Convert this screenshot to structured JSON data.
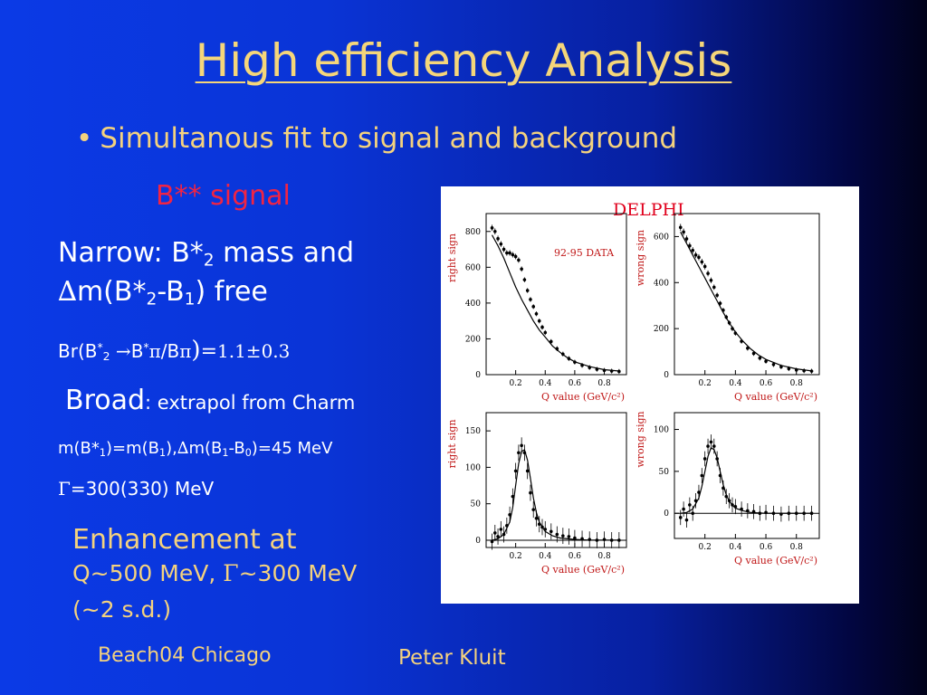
{
  "slide": {
    "title": "High efficiency Analysis",
    "bullet": "Simultanous fit to signal and background",
    "signal_heading": "B** signal",
    "narrow": {
      "line1_a": "Narrow: B*",
      "line1_sub": "2",
      "line1_b": " mass and",
      "line2_delta": "∆",
      "line2_a": "m(B*",
      "line2_sub1": "2",
      "line2_b": "-B",
      "line2_sub2": "1",
      "line2_c": ") free"
    },
    "br": {
      "a": "Br(B",
      "sup1": "*",
      "sub1": "2",
      "arrow": " →",
      "b": "B",
      "sup2": "*",
      "pi1": "π",
      "c": "/B",
      "pi2": "π",
      "paren": ")",
      "eq": "=",
      "value": "1.1±0.3"
    },
    "broad": {
      "label": "Broad",
      "text": ": extrapol from Charm",
      "mass_a": "m(B*",
      "mass_sub1": "1",
      "mass_b": ")=m(B",
      "mass_sub2": "1",
      "mass_c": "),",
      "mass_delta": "∆",
      "mass_d": "m(B",
      "mass_sub3": "1",
      "mass_e": "-B",
      "mass_sub4": "0",
      "mass_f": ")=45 MeV",
      "gamma_sym": "Γ",
      "gamma_text": "=300(330) MeV"
    },
    "enhancement": {
      "line1": "Enhancement at",
      "line2_a": "Q~500 MeV, ",
      "line2_gamma": "Γ",
      "line2_b": "~300 MeV",
      "line3": "(~2 s.d.)"
    },
    "footer": {
      "left": "Beach04 Chicago",
      "center": "Peter Kluit"
    },
    "colors": {
      "title": "#f5d67a",
      "accent_red": "#f02444",
      "text_white": "#ffffff",
      "background": "#0a34d6"
    }
  },
  "chart_data": [
    {
      "type": "scatter",
      "experiment_label": "DELPHI",
      "annotation": "92-95 DATA",
      "xlabel": "Q value (GeV/c²)",
      "ylabel": "right sign",
      "xticks": [
        0.2,
        0.4,
        0.6,
        0.8
      ],
      "yticks": [
        0,
        200,
        400,
        600,
        800
      ],
      "xlim": [
        0,
        0.95
      ],
      "ylim": [
        0,
        900
      ],
      "series": [
        {
          "x": [
            0.04,
            0.06,
            0.08,
            0.1,
            0.12,
            0.14,
            0.16,
            0.18,
            0.2,
            0.22,
            0.24,
            0.26,
            0.28,
            0.3,
            0.32,
            0.34,
            0.36,
            0.38,
            0.4,
            0.44,
            0.48,
            0.52,
            0.56,
            0.6,
            0.65,
            0.7,
            0.75,
            0.8,
            0.85,
            0.9
          ],
          "y": [
            820,
            800,
            760,
            730,
            700,
            680,
            680,
            670,
            660,
            640,
            590,
            530,
            470,
            420,
            380,
            340,
            300,
            265,
            235,
            185,
            145,
            115,
            90,
            70,
            52,
            40,
            30,
            24,
            20,
            18
          ]
        },
        {
          "x": [
            0.04,
            0.08,
            0.12,
            0.16,
            0.2,
            0.24,
            0.28,
            0.32,
            0.36,
            0.4,
            0.45,
            0.5,
            0.55,
            0.6,
            0.7,
            0.8,
            0.9
          ],
          "y": [
            780,
            720,
            650,
            570,
            490,
            420,
            360,
            300,
            250,
            210,
            160,
            125,
            95,
            72,
            45,
            28,
            20
          ]
        }
      ]
    },
    {
      "type": "scatter",
      "xlabel": "Q value (GeV/c²)",
      "ylabel": "wrong sign",
      "xticks": [
        0.2,
        0.4,
        0.6,
        0.8
      ],
      "yticks": [
        0,
        200,
        400,
        600
      ],
      "xlim": [
        0,
        0.95
      ],
      "ylim": [
        0,
        700
      ],
      "series": [
        {
          "x": [
            0.04,
            0.06,
            0.08,
            0.1,
            0.12,
            0.14,
            0.16,
            0.18,
            0.2,
            0.22,
            0.24,
            0.26,
            0.28,
            0.3,
            0.32,
            0.34,
            0.36,
            0.38,
            0.4,
            0.44,
            0.48,
            0.52,
            0.56,
            0.6,
            0.65,
            0.7,
            0.75,
            0.8,
            0.85,
            0.9
          ],
          "y": [
            640,
            620,
            590,
            560,
            540,
            520,
            510,
            490,
            470,
            440,
            410,
            380,
            345,
            310,
            280,
            250,
            225,
            200,
            180,
            145,
            115,
            92,
            72,
            58,
            44,
            34,
            26,
            20,
            17,
            15
          ]
        },
        {
          "x": [
            0.04,
            0.08,
            0.12,
            0.16,
            0.2,
            0.24,
            0.28,
            0.32,
            0.36,
            0.4,
            0.45,
            0.5,
            0.55,
            0.6,
            0.7,
            0.8,
            0.9
          ],
          "y": [
            620,
            570,
            520,
            470,
            420,
            370,
            320,
            270,
            225,
            185,
            145,
            112,
            86,
            66,
            40,
            25,
            16
          ]
        }
      ]
    },
    {
      "type": "scatter",
      "xlabel": "Q value (GeV/c²)",
      "ylabel": "right sign",
      "xticks": [
        0.2,
        0.4,
        0.6,
        0.8
      ],
      "yticks": [
        0,
        50,
        100,
        150
      ],
      "xlim": [
        0,
        0.95
      ],
      "ylim": [
        -10,
        175
      ],
      "series": [
        {
          "x": [
            0.04,
            0.06,
            0.08,
            0.1,
            0.12,
            0.14,
            0.16,
            0.18,
            0.2,
            0.22,
            0.24,
            0.26,
            0.28,
            0.3,
            0.32,
            0.34,
            0.36,
            0.38,
            0.4,
            0.44,
            0.48,
            0.52,
            0.56,
            0.6,
            0.65,
            0.7,
            0.75,
            0.8,
            0.85,
            0.9
          ],
          "y": [
            -2,
            10,
            5,
            15,
            8,
            20,
            35,
            60,
            95,
            120,
            130,
            120,
            95,
            65,
            42,
            30,
            22,
            18,
            15,
            12,
            8,
            6,
            5,
            3,
            2,
            1,
            0,
            1,
            0,
            0
          ]
        },
        {
          "x": [
            0.04,
            0.08,
            0.12,
            0.16,
            0.18,
            0.2,
            0.22,
            0.24,
            0.26,
            0.28,
            0.3,
            0.32,
            0.34,
            0.36,
            0.4,
            0.45,
            0.5,
            0.6,
            0.7,
            0.9
          ],
          "y": [
            0,
            2,
            8,
            25,
            45,
            75,
            105,
            122,
            124,
            110,
            85,
            58,
            38,
            25,
            12,
            6,
            3,
            1,
            0,
            0
          ]
        }
      ]
    },
    {
      "type": "scatter",
      "xlabel": "Q value (GeV/c²)",
      "ylabel": "wrong sign",
      "xticks": [
        0.2,
        0.4,
        0.6,
        0.8
      ],
      "yticks": [
        0,
        50,
        100
      ],
      "xlim": [
        0,
        0.95
      ],
      "ylim": [
        -30,
        120
      ],
      "series": [
        {
          "x": [
            0.04,
            0.06,
            0.08,
            0.1,
            0.12,
            0.14,
            0.16,
            0.18,
            0.2,
            0.22,
            0.24,
            0.26,
            0.28,
            0.3,
            0.32,
            0.34,
            0.36,
            0.38,
            0.4,
            0.44,
            0.48,
            0.52,
            0.56,
            0.6,
            0.65,
            0.7,
            0.75,
            0.8,
            0.85,
            0.9
          ],
          "y": [
            -5,
            5,
            -8,
            10,
            0,
            15,
            25,
            45,
            65,
            80,
            85,
            80,
            65,
            45,
            30,
            20,
            15,
            10,
            8,
            5,
            3,
            2,
            0,
            1,
            0,
            -1,
            0,
            0,
            0,
            0
          ]
        },
        {
          "x": [
            0.04,
            0.08,
            0.12,
            0.16,
            0.18,
            0.2,
            0.22,
            0.24,
            0.26,
            0.28,
            0.3,
            0.32,
            0.34,
            0.36,
            0.4,
            0.45,
            0.5,
            0.6,
            0.7,
            0.9
          ],
          "y": [
            0,
            1,
            5,
            18,
            32,
            50,
            68,
            78,
            76,
            66,
            50,
            34,
            22,
            14,
            6,
            3,
            1,
            0,
            0,
            0
          ]
        }
      ]
    }
  ]
}
